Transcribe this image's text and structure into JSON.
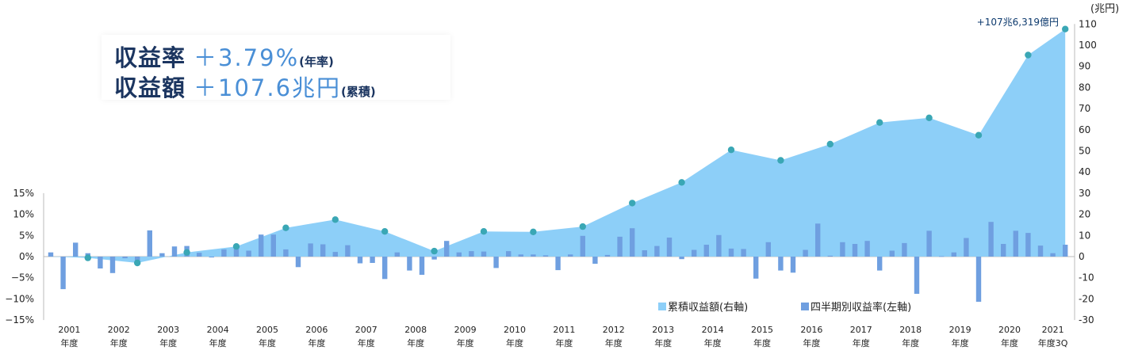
{
  "headline": {
    "return_rate_label": "収益率",
    "return_rate_value": "＋3.79%",
    "return_rate_note": "(年率)",
    "return_amount_label": "収益額",
    "return_amount_value": "＋107.6兆円",
    "return_amount_note": "(累積)"
  },
  "chart_data": {
    "type": "bar+area",
    "title": "",
    "callout": "+107兆6,319億円",
    "right_axis_unit": "(兆円)",
    "left_axis": {
      "min": -15,
      "max": 15,
      "step": 5,
      "tick_labels": [
        "15%",
        "10%",
        "5%",
        "0%",
        "−5%",
        "−10%",
        "−15%"
      ]
    },
    "right_axis": {
      "min": -30,
      "max": 110,
      "step": 10
    },
    "year_suffix": "年度",
    "categories": [
      "2001",
      "2002",
      "2003",
      "2004",
      "2005",
      "2006",
      "2007",
      "2008",
      "2009",
      "2010",
      "2011",
      "2012",
      "2013",
      "2014",
      "2015",
      "2016",
      "2017",
      "2018",
      "2019",
      "2020",
      "2021"
    ],
    "last_category_suffix": "年度3Q",
    "legend": {
      "area": "累積収益額(右軸)",
      "bar": "四半期別収益率(左軸)"
    },
    "colors": {
      "area": "#8dcff8",
      "bar": "#6f9fe0",
      "marker": "#3aa7b5",
      "text": "#222222"
    },
    "quarterly_return_pct": [
      1.0,
      -7.7,
      3.3,
      0.8,
      -2.8,
      -3.9,
      -0.4,
      -1.4,
      6.2,
      0.8,
      2.4,
      2.5,
      0.9,
      -0.2,
      1.7,
      2.2,
      1.4,
      5.2,
      5.2,
      1.7,
      -2.5,
      3.1,
      2.9,
      1.1,
      2.7,
      -1.6,
      -1.5,
      -5.3,
      1.0,
      -3.3,
      -4.3,
      -0.7,
      3.7,
      1.0,
      1.3,
      1.2,
      -2.7,
      1.3,
      0.5,
      0.5,
      0.3,
      -3.2,
      0.5,
      4.9,
      -1.7,
      0.4,
      4.7,
      6.7,
      1.5,
      2.5,
      4.5,
      -0.6,
      1.6,
      2.8,
      5.1,
      1.9,
      1.8,
      -5.2,
      3.4,
      -3.3,
      -3.8,
      1.6,
      7.8,
      0.2,
      3.4,
      3.0,
      3.7,
      -3.3,
      1.4,
      3.2,
      -8.8,
      6.1,
      0.1,
      1.0,
      4.4,
      -10.7,
      8.2,
      3.0,
      6.1,
      5.6,
      2.6,
      0.8,
      2.8
    ],
    "cumulative_return_trillion_yen": [
      -0.6,
      -3.0,
      2.0,
      4.8,
      13.6,
      17.5,
      11.9,
      2.6,
      11.9,
      11.7,
      14.2,
      25.3,
      35.1,
      50.5,
      45.5,
      53.2,
      63.4,
      65.6,
      57.4,
      95.3,
      107.6
    ]
  }
}
